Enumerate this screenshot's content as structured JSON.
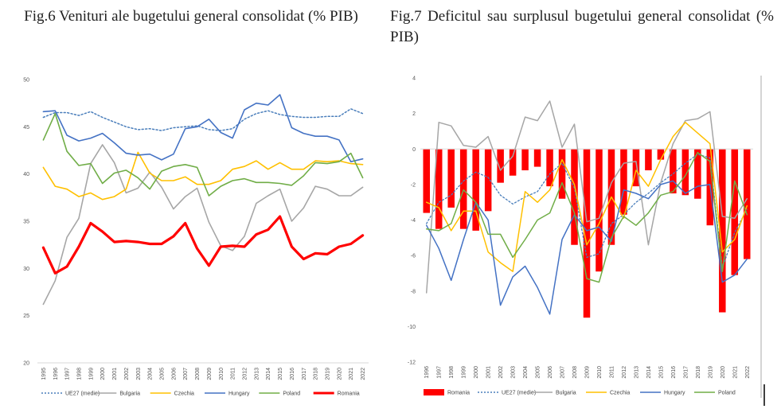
{
  "titles": {
    "left": "Fig.6 Venituri ale bugetului general consolidat (% PIB)",
    "right": "Fig.7 Deficitul sau surplusul bugetului general consolidat (% PIB)"
  },
  "chart_data": [
    {
      "type": "line",
      "title": "Fig.6 Venituri ale bugetului general consolidat (% PIB)",
      "xlabel": "",
      "ylabel": "",
      "ylim": [
        20,
        50
      ],
      "yticks": [
        20,
        25,
        30,
        35,
        40,
        45,
        50
      ],
      "grid": false,
      "legend": "bottom",
      "x": [
        "1995",
        "1996",
        "1997",
        "1998",
        "1999",
        "2000",
        "2001",
        "2002",
        "2003",
        "2004",
        "2005",
        "2006",
        "2007",
        "2008",
        "2009",
        "2010",
        "2011",
        "2012",
        "2013",
        "2014",
        "2015",
        "2016",
        "2017",
        "2018",
        "2019",
        "2020",
        "2021",
        "2022"
      ],
      "series": [
        {
          "name": "UE27 (medie)",
          "color": "#4a7ebb",
          "dash": true,
          "width": 1.5,
          "values": [
            46.0,
            46.5,
            46.5,
            46.2,
            46.6,
            46.0,
            45.5,
            45.0,
            44.7,
            44.8,
            44.6,
            44.9,
            45.0,
            45.1,
            44.7,
            44.6,
            44.8,
            45.8,
            46.4,
            46.7,
            46.3,
            46.1,
            46.0,
            46.0,
            46.1,
            46.1,
            46.9,
            46.4
          ]
        },
        {
          "name": "Bulgaria",
          "color": "#a6a6a6",
          "dash": false,
          "width": 1.6,
          "values": [
            26.2,
            28.7,
            33.3,
            35.3,
            41.1,
            43.1,
            41.2,
            38.0,
            38.5,
            40.2,
            38.6,
            36.3,
            37.6,
            38.5,
            34.9,
            32.4,
            31.9,
            33.4,
            36.9,
            37.7,
            38.4,
            35.0,
            36.4,
            38.7,
            38.4,
            37.7,
            37.7,
            38.6
          ]
        },
        {
          "name": "Czechia",
          "color": "#ffc000",
          "dash": false,
          "width": 1.6,
          "values": [
            40.7,
            38.7,
            38.4,
            37.6,
            38.0,
            37.3,
            37.6,
            38.4,
            42.3,
            40.1,
            39.3,
            39.3,
            39.7,
            38.9,
            38.9,
            39.3,
            40.5,
            40.8,
            41.4,
            40.5,
            41.2,
            40.5,
            40.5,
            41.4,
            41.3,
            41.4,
            41.1,
            41.0
          ]
        },
        {
          "name": "Hungary",
          "color": "#4472c4",
          "dash": false,
          "width": 1.6,
          "values": [
            46.6,
            46.7,
            44.1,
            43.5,
            43.8,
            44.3,
            43.3,
            42.2,
            42.0,
            42.1,
            41.5,
            42.1,
            44.8,
            45.0,
            45.8,
            44.4,
            43.8,
            46.8,
            47.5,
            47.3,
            48.4,
            44.9,
            44.3,
            44.0,
            44.0,
            43.6,
            41.3,
            41.6
          ]
        },
        {
          "name": "Poland",
          "color": "#70ad47",
          "dash": false,
          "width": 1.6,
          "values": [
            43.6,
            46.4,
            42.4,
            40.9,
            41.1,
            39.0,
            40.1,
            40.4,
            39.6,
            38.4,
            40.3,
            40.8,
            41.0,
            40.7,
            37.7,
            38.7,
            39.3,
            39.5,
            39.1,
            39.1,
            39.0,
            38.8,
            39.8,
            41.2,
            41.1,
            41.3,
            42.2,
            39.6
          ]
        },
        {
          "name": "Romania",
          "color": "#ff0000",
          "dash": false,
          "width": 3.2,
          "values": [
            32.2,
            29.5,
            30.2,
            32.3,
            34.8,
            33.9,
            32.8,
            32.9,
            32.8,
            32.6,
            32.6,
            33.4,
            34.8,
            32.1,
            30.3,
            32.3,
            32.4,
            32.3,
            33.6,
            34.1,
            35.5,
            32.3,
            31.0,
            31.6,
            31.5,
            32.3,
            32.6,
            33.5
          ]
        }
      ]
    },
    {
      "type": "bar+line",
      "title": "Fig.7 Deficitul sau surplusul bugetului general consolidat (% PIB)",
      "xlabel": "",
      "ylabel": "",
      "ylim": [
        -12,
        4
      ],
      "yticks": [
        -12,
        -10,
        -8,
        -6,
        -4,
        -2,
        0,
        2,
        4
      ],
      "grid": false,
      "legend": "bottom",
      "x": [
        "1996",
        "1997",
        "1998",
        "1999",
        "2000",
        "2001",
        "2002",
        "2003",
        "2004",
        "2005",
        "2006",
        "2007",
        "2008",
        "2009",
        "2010",
        "2011",
        "2012",
        "2013",
        "2014",
        "2015",
        "2016",
        "2017",
        "2018",
        "2019",
        "2020",
        "2021",
        "2022"
      ],
      "bars": {
        "name": "Romania",
        "color": "#ff0000",
        "values": [
          -3.6,
          -4.5,
          -3.3,
          -4.5,
          -4.6,
          -3.5,
          -1.9,
          -1.5,
          -1.2,
          -1.0,
          -2.1,
          -2.8,
          -5.4,
          -9.5,
          -6.9,
          -5.4,
          -3.7,
          -2.1,
          -1.2,
          -0.6,
          -2.5,
          -2.6,
          -2.8,
          -4.3,
          -9.2,
          -7.1,
          -6.2
        ]
      },
      "series": [
        {
          "name": "UE27 (medie)",
          "color": "#4a7ebb",
          "dash": true,
          "width": 1.3,
          "values": [
            -4.2,
            -3.0,
            -2.6,
            -1.8,
            -1.3,
            -1.6,
            -2.6,
            -3.1,
            -2.7,
            -2.4,
            -1.4,
            -0.8,
            -2.2,
            -6.1,
            -5.9,
            -4.2,
            -3.7,
            -3.0,
            -2.5,
            -1.9,
            -1.4,
            -0.8,
            -0.3,
            -0.5,
            -6.7,
            -4.7,
            -3.4
          ]
        },
        {
          "name": "Bulgaria",
          "color": "#a6a6a6",
          "dash": false,
          "width": 1.5,
          "values": [
            -8.1,
            1.5,
            1.3,
            0.2,
            0.1,
            0.7,
            -1.2,
            -0.4,
            1.8,
            1.6,
            2.7,
            0.1,
            1.4,
            -4.1,
            -3.9,
            -1.9,
            -0.8,
            -0.7,
            -5.4,
            -1.9,
            0.3,
            1.6,
            1.7,
            2.1,
            -3.8,
            -3.9,
            -2.8
          ]
        },
        {
          "name": "Czechia",
          "color": "#ffc000",
          "dash": false,
          "width": 1.5,
          "values": [
            -3.0,
            -3.3,
            -4.6,
            -3.5,
            -3.5,
            -5.8,
            -6.4,
            -6.9,
            -2.4,
            -3.0,
            -2.3,
            -0.6,
            -2.0,
            -5.4,
            -4.2,
            -2.7,
            -3.9,
            -1.2,
            -2.1,
            -0.6,
            0.7,
            1.5,
            0.9,
            0.3,
            -5.8,
            -5.1,
            -3.2
          ]
        },
        {
          "name": "Hungary",
          "color": "#4472c4",
          "dash": false,
          "width": 1.5,
          "values": [
            -4.3,
            -5.6,
            -7.4,
            -5.1,
            -3.0,
            -4.0,
            -8.8,
            -7.2,
            -6.6,
            -7.8,
            -9.3,
            -5.1,
            -3.7,
            -4.6,
            -4.4,
            -5.2,
            -2.3,
            -2.5,
            -2.8,
            -2.0,
            -1.8,
            -2.5,
            -2.1,
            -2.0,
            -7.5,
            -7.1,
            -6.2
          ]
        },
        {
          "name": "Poland",
          "color": "#70ad47",
          "dash": false,
          "width": 1.5,
          "values": [
            -4.5,
            -4.6,
            -4.2,
            -2.3,
            -3.0,
            -4.8,
            -4.8,
            -6.1,
            -5.1,
            -4.0,
            -3.6,
            -1.9,
            -3.6,
            -7.3,
            -7.5,
            -5.0,
            -3.8,
            -4.3,
            -3.6,
            -2.6,
            -2.4,
            -1.5,
            -0.2,
            -0.7,
            -6.9,
            -1.8,
            -3.7
          ]
        }
      ]
    }
  ]
}
